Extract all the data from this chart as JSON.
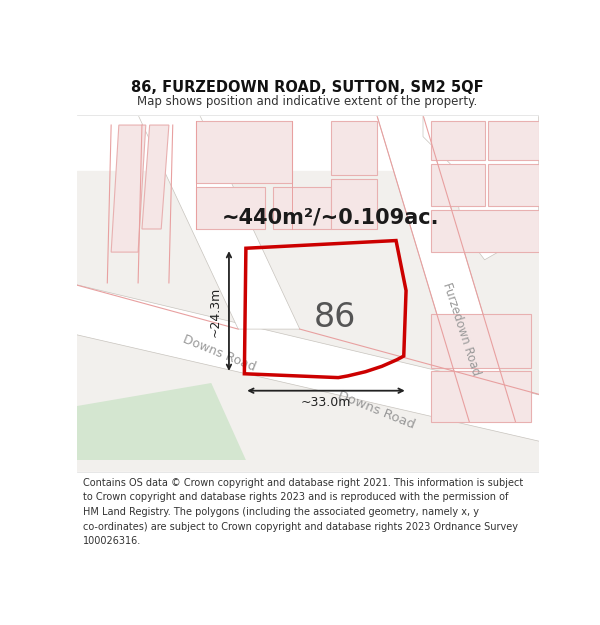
{
  "title": "86, FURZEDOWN ROAD, SUTTON, SM2 5QF",
  "subtitle": "Map shows position and indicative extent of the property.",
  "area_text": "~440m²/~0.109ac.",
  "property_number": "86",
  "dim_width": "~33.0m",
  "dim_height": "~24.3m",
  "footer": "Contains OS data © Crown copyright and database right 2021. This information is subject to Crown copyright and database rights 2023 and is reproduced with the permission of HM Land Registry. The polygons (including the associated geometry, namely x, y co-ordinates) are subject to Crown copyright and database rights 2023 Ordnance Survey 100026316.",
  "map_bg": "#f2f0ed",
  "road_fill": "#ffffff",
  "road_edge": "#c8c4be",
  "building_fill": "#f5e6e6",
  "building_edge": "#e8b0b0",
  "property_edge": "#cc0000",
  "green_fill": "#d4e6d0",
  "green_edge": "none",
  "dim_color": "#222222",
  "label_color": "#999999",
  "title_fontsize": 10.5,
  "subtitle_fontsize": 8.5,
  "footer_fontsize": 7.0,
  "area_fontsize": 15,
  "number_fontsize": 24,
  "dim_fontsize": 9
}
